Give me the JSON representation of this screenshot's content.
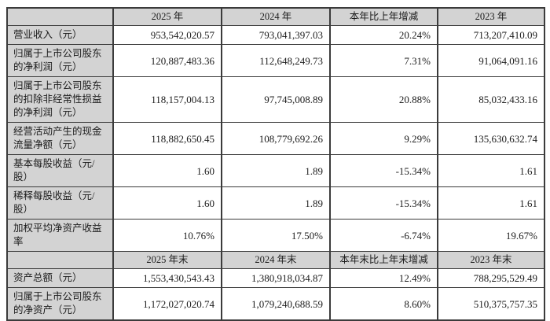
{
  "colors": {
    "header_background": "#d3d3d3",
    "label_background": "#d3d3d3",
    "border": "#3b3b3b",
    "text": "#1c1c1c",
    "page_background": "#ffffff"
  },
  "table": {
    "sections": [
      {
        "columns": [
          "2025 年",
          "2024 年",
          "本年比上年增减",
          "2023 年"
        ],
        "rows": [
          {
            "label": "营业收入（元）",
            "values": [
              "953,542,020.57",
              "793,041,397.03",
              "20.24%",
              "713,207,410.09"
            ]
          },
          {
            "label": "归属于上市公司股东\n的净利润（元）",
            "values": [
              "120,887,483.36",
              "112,648,249.73",
              "7.31%",
              "91,064,091.16"
            ]
          },
          {
            "label": "归属于上市公司股东\n的扣除非经常性损益\n的净利润（元）",
            "values": [
              "118,157,004.13",
              "97,745,008.89",
              "20.88%",
              "85,032,433.16"
            ]
          },
          {
            "label": "经营活动产生的现金\n流量净额（元）",
            "values": [
              "118,882,650.45",
              "108,779,692.26",
              "9.29%",
              "135,630,632.74"
            ]
          },
          {
            "label": "基本每股收益（元/\n股）",
            "values": [
              "1.60",
              "1.89",
              "-15.34%",
              "1.61"
            ]
          },
          {
            "label": "稀释每股收益（元/\n股）",
            "values": [
              "1.60",
              "1.89",
              "-15.34%",
              "1.61"
            ]
          },
          {
            "label": "加权平均净资产收益\n率",
            "values": [
              "10.76%",
              "17.50%",
              "-6.74%",
              "19.67%"
            ]
          }
        ]
      },
      {
        "columns": [
          "2025 年末",
          "2024 年末",
          "本年末比上年末增减",
          "2023 年末"
        ],
        "rows": [
          {
            "label": "资产总额（元）",
            "values": [
              "1,553,430,543.43",
              "1,380,918,034.87",
              "12.49%",
              "788,295,529.49"
            ]
          },
          {
            "label": "归属于上市公司股东\n的净资产（元）",
            "values": [
              "1,172,027,020.74",
              "1,079,240,688.59",
              "8.60%",
              "510,375,757.35"
            ]
          }
        ]
      }
    ]
  }
}
